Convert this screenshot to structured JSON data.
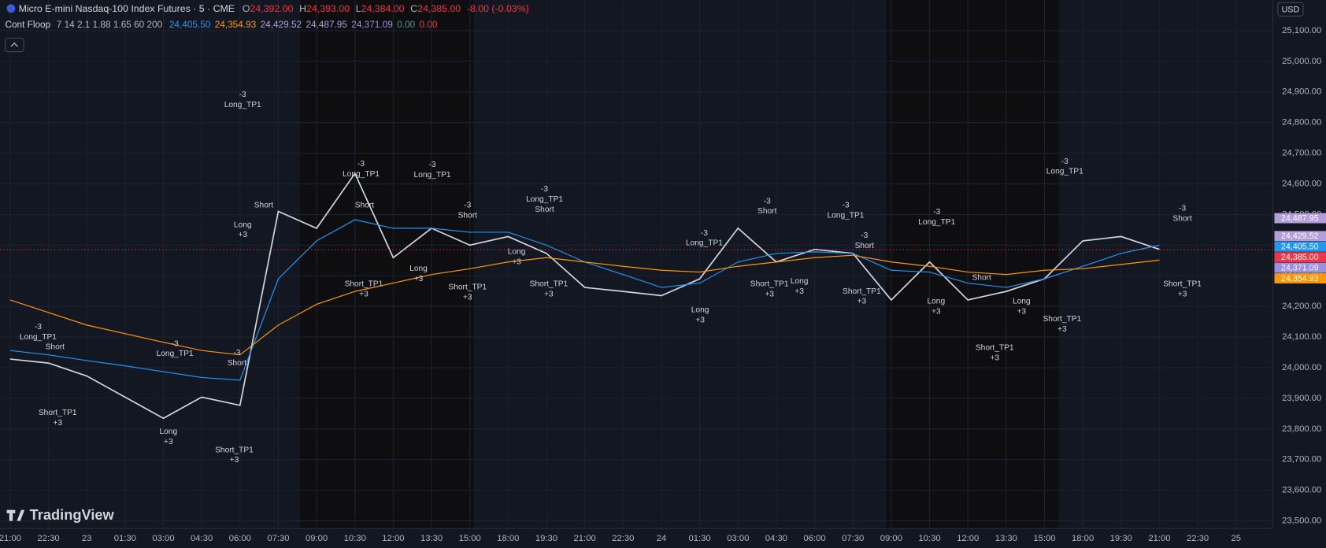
{
  "header": {
    "title": "Micro E-mini Nasdaq-100 Index Futures · 5 · CME",
    "o_label": "O",
    "o": "24,392.00",
    "h_label": "H",
    "h": "24,393.00",
    "l_label": "L",
    "l": "24,384.00",
    "c_label": "C",
    "c": "24,385.00",
    "change": "-8.00 (-0.03%)"
  },
  "indicator": {
    "name": "Cont Floop",
    "params": "7 14 2.1 1.88 1.65 60 200",
    "values": [
      {
        "text": "24,405.50",
        "color": "#2196f3"
      },
      {
        "text": "24,354.93",
        "color": "#ff9800"
      },
      {
        "text": "24,429.52",
        "color": "#b39ddb"
      },
      {
        "text": "24,487.95",
        "color": "#b39ddb"
      },
      {
        "text": "24,371.09",
        "color": "#9c8fe6"
      },
      {
        "text": "0.00",
        "color": "#26a69a"
      },
      {
        "text": "0.00",
        "color": "#f23645"
      }
    ]
  },
  "currency": "USD",
  "watermark": "TradingView",
  "chart_data": {
    "type": "line",
    "grid": true,
    "categories": [
      "21:00",
      "22:30",
      "23",
      "01:30",
      "03:00",
      "04:30",
      "06:00",
      "07:30",
      "09:00",
      "10:30",
      "12:00",
      "13:30",
      "15:00",
      "18:00",
      "19:30",
      "21:00",
      "22:30",
      "24",
      "01:30",
      "03:00",
      "04:30",
      "06:00",
      "07:30",
      "09:00",
      "10:30",
      "12:00",
      "13:30",
      "15:00",
      "18:00",
      "19:30",
      "21:00",
      "22:30",
      "25"
    ],
    "series": [
      {
        "color": "#d1d4dc",
        "values": [
          24028,
          24015,
          23973,
          23904,
          23835,
          23904,
          23877,
          24510,
          24455,
          24634,
          24359,
          24455,
          24400,
          24428,
          24373,
          24262,
          24249,
          24235,
          24290,
          24455,
          24345,
          24386,
          24373,
          24221,
          24345,
          24221,
          24249,
          24290,
          24414,
          24428,
          24386,
          null,
          null
        ]
      },
      {
        "color": "#2196f3",
        "values": [
          24056,
          24042,
          24023,
          24006,
          23987,
          23968,
          23959,
          24290,
          24414,
          24483,
          24455,
          24455,
          24442,
          24442,
          24400,
          24345,
          24304,
          24262,
          24276,
          24345,
          24373,
          24378,
          24373,
          24318,
          24312,
          24276,
          24262,
          24290,
          24331,
          24373,
          24400,
          null,
          null
        ]
      },
      {
        "color": "#ff9800",
        "values": [
          24221,
          24180,
          24139,
          24111,
          24083,
          24056,
          24042,
          24139,
          24207,
          24249,
          24276,
          24304,
          24323,
          24345,
          24359,
          24345,
          24331,
          24318,
          24312,
          24331,
          24345,
          24359,
          24367,
          24345,
          24331,
          24312,
          24304,
          24318,
          24323,
          24337,
          24351,
          null,
          null
        ]
      }
    ],
    "ylim": [
      23475,
      25200
    ],
    "yticks": [
      {
        "value": 23500,
        "label": "23,500.00"
      },
      {
        "value": 23600,
        "label": "23,600.00"
      },
      {
        "value": 23700,
        "label": "23,700.00"
      },
      {
        "value": 23800,
        "label": "23,800.00"
      },
      {
        "value": 23900,
        "label": "23,900.00"
      },
      {
        "value": 24000,
        "label": "24,000.00"
      },
      {
        "value": 24100,
        "label": "24,100.00"
      },
      {
        "value": 24200,
        "label": "24,200.00"
      },
      {
        "value": 24300,
        "label": "24,300.00"
      },
      {
        "value": 24400,
        "label": "24,400.00"
      },
      {
        "value": 24500,
        "label": "24,500.00"
      },
      {
        "value": 24600,
        "label": "24,600.00"
      },
      {
        "value": 24700,
        "label": "24,700.00"
      },
      {
        "value": 24800,
        "label": "24,800.00"
      },
      {
        "value": 24900,
        "label": "24,900.00"
      },
      {
        "value": 25000,
        "label": "25,000.00"
      },
      {
        "value": 25100,
        "label": "25,100.00"
      }
    ],
    "price_tags": [
      {
        "value": 24487.95,
        "label": "24,487.95",
        "color": "#b39ddb"
      },
      {
        "value": 24429.52,
        "label": "24,429.52",
        "color": "#b39ddb"
      },
      {
        "value": 24405.5,
        "label": "24,405.50",
        "color": "#2196f3"
      },
      {
        "value": 24385,
        "label": "24,385.00",
        "color": "#f23645",
        "price_line": true
      },
      {
        "value": 24371.09,
        "label": "24,371.09",
        "color": "#9c8fe6"
      },
      {
        "value": 24354.93,
        "label": "24,354.93",
        "color": "#ff9800"
      }
    ],
    "annotations": [
      {
        "lines": [
          "-3",
          "Long_TP1"
        ],
        "i": 0.73,
        "price": 24133
      },
      {
        "lines": [
          "Short"
        ],
        "i": 1.17,
        "price": 24067
      },
      {
        "lines": [
          "Short_TP1",
          "+3"
        ],
        "i": 1.24,
        "price": 23852
      },
      {
        "lines": [
          "-3",
          "Long_TP1"
        ],
        "i": 4.3,
        "price": 24078
      },
      {
        "lines": [
          "Long",
          "+3"
        ],
        "i": 4.13,
        "price": 23791
      },
      {
        "lines": [
          "-3",
          "Short"
        ],
        "i": 5.92,
        "price": 24048
      },
      {
        "lines": [
          "Short_TP1",
          "+3"
        ],
        "i": 5.85,
        "price": 23731
      },
      {
        "lines": [
          "-3",
          "Long_TP1"
        ],
        "i": 6.07,
        "price": 24891
      },
      {
        "lines": [
          "Long",
          "+3"
        ],
        "i": 6.07,
        "price": 24466
      },
      {
        "lines": [
          "Short"
        ],
        "i": 6.62,
        "price": 24530
      },
      {
        "lines": [
          "-3",
          "Long_TP1"
        ],
        "i": 9.16,
        "price": 24665
      },
      {
        "lines": [
          "Short"
        ],
        "i": 9.25,
        "price": 24530
      },
      {
        "lines": [
          "Short_TP1",
          "+3"
        ],
        "i": 9.23,
        "price": 24273
      },
      {
        "lines": [
          "-3",
          "Long_TP1"
        ],
        "i": 11.02,
        "price": 24662
      },
      {
        "lines": [
          "Long",
          "+3"
        ],
        "i": 10.66,
        "price": 24323
      },
      {
        "lines": [
          "-3",
          "Short"
        ],
        "i": 11.94,
        "price": 24530
      },
      {
        "lines": [
          "Short_TP1",
          "+3"
        ],
        "i": 11.94,
        "price": 24262
      },
      {
        "lines": [
          "-3",
          "Long_TP1",
          "Short"
        ],
        "i": 13.95,
        "price": 24582
      },
      {
        "lines": [
          "Long",
          "+3"
        ],
        "i": 13.22,
        "price": 24378
      },
      {
        "lines": [
          "Short_TP1",
          "+3"
        ],
        "i": 14.06,
        "price": 24273
      },
      {
        "lines": [
          "-3",
          "Long_TP1"
        ],
        "i": 18.12,
        "price": 24439
      },
      {
        "lines": [
          "Long",
          "+3"
        ],
        "i": 18.01,
        "price": 24188
      },
      {
        "lines": [
          "-3",
          "Short"
        ],
        "i": 19.76,
        "price": 24543
      },
      {
        "lines": [
          "Short_TP1",
          "+3"
        ],
        "i": 19.82,
        "price": 24273
      },
      {
        "lines": [
          "Long",
          "+3"
        ],
        "i": 20.6,
        "price": 24282
      },
      {
        "lines": [
          "-3",
          "Long_TP1"
        ],
        "i": 21.81,
        "price": 24530
      },
      {
        "lines": [
          "-3",
          "Short"
        ],
        "i": 22.3,
        "price": 24431
      },
      {
        "lines": [
          "Short_TP1",
          "+3"
        ],
        "i": 22.23,
        "price": 24249
      },
      {
        "lines": [
          "-3",
          "Long_TP1"
        ],
        "i": 24.19,
        "price": 24508
      },
      {
        "lines": [
          "Long",
          "+3"
        ],
        "i": 24.17,
        "price": 24216
      },
      {
        "lines": [
          "Short"
        ],
        "i": 25.36,
        "price": 24293
      },
      {
        "lines": [
          "Short_TP1",
          "+3"
        ],
        "i": 25.7,
        "price": 24064
      },
      {
        "lines": [
          "Long",
          "+3"
        ],
        "i": 26.4,
        "price": 24216
      },
      {
        "lines": [
          "-3",
          "Long_TP1"
        ],
        "i": 27.53,
        "price": 24673
      },
      {
        "lines": [
          "Short_TP1",
          "+3"
        ],
        "i": 27.46,
        "price": 24158
      },
      {
        "lines": [
          "-3",
          "Short"
        ],
        "i": 30.6,
        "price": 24519
      },
      {
        "lines": [
          "Short_TP1",
          "+3"
        ],
        "i": 30.6,
        "price": 24273
      }
    ]
  }
}
